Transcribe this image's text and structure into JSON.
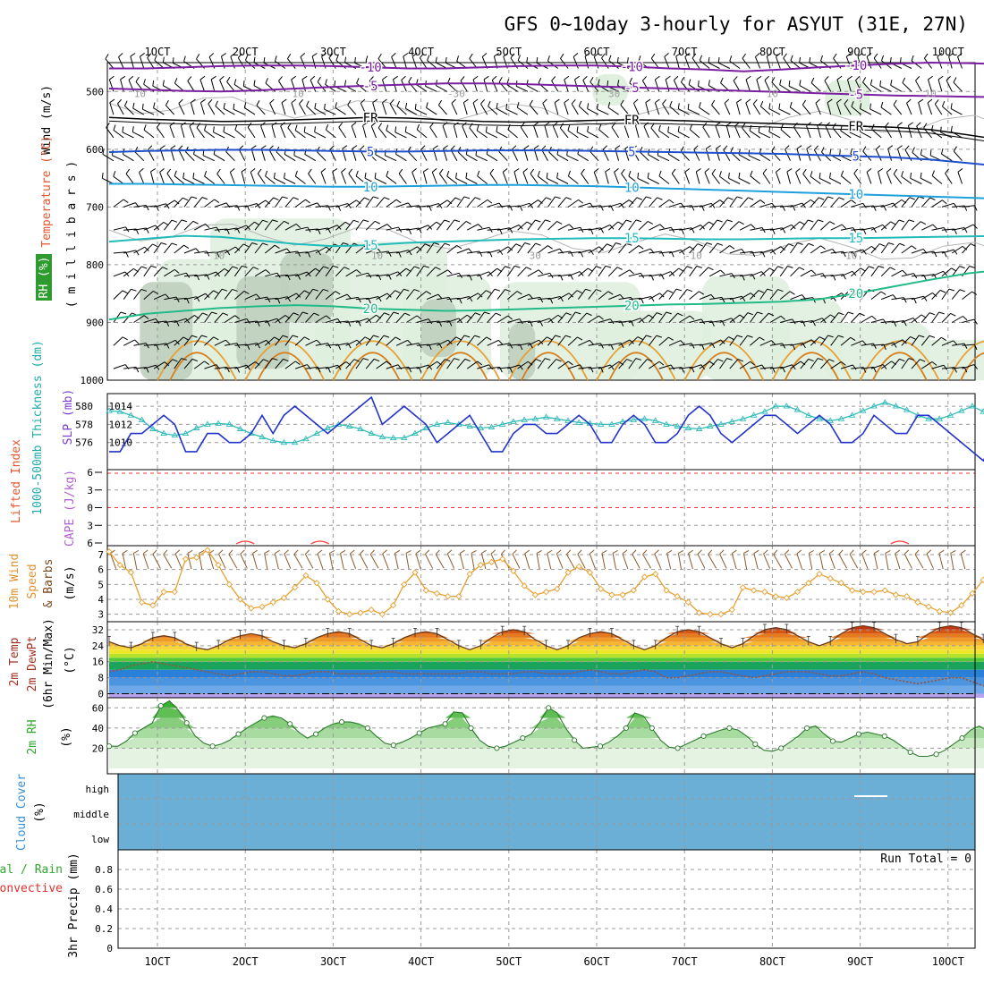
{
  "title": "GFS 0~10day 3-hourly for ASYUT (31E, 27N)",
  "date_labels": [
    "1OCT",
    "2OCT",
    "3OCT",
    "4OCT",
    "5OCT",
    "6OCT",
    "7OCT",
    "8OCT",
    "9OCT",
    "10OCT"
  ],
  "colors": {
    "rh_fill": "#2d9b2d",
    "frame": "#000000",
    "grid": "#9a9a9a",
    "slp": "#2233cc",
    "thick": "#33bbbb",
    "wind10": "#e8a030",
    "barb_upper": "#000000",
    "barb_10m": "#8b5a2b",
    "li_line": "#ff3333",
    "rh2m": "#33aa33",
    "cloud": "#6baed6",
    "dewpt": "#a05030"
  },
  "chart_data": [
    {
      "id": "upper-air",
      "type": "contour",
      "ylabel_wind": "Wind (m/s)",
      "ylabel_temp": "Temperature (°C)",
      "ylabel_rh": "RH (%)",
      "ylabel_unit": "( m i l l i b a r s )",
      "yticks": [
        500,
        600,
        700,
        800,
        900,
        1000
      ],
      "ylim": [
        450,
        1000
      ],
      "isotherms": [
        {
          "label": "-10",
          "color": "#7a1fa2",
          "levels": [
            460,
            460,
            458,
            456,
            455,
            455,
            456,
            458,
            460,
            460,
            458,
            456,
            455,
            455,
            457,
            460,
            462,
            465,
            462,
            458,
            455,
            452,
            450,
            451,
            453
          ]
        },
        {
          "label": "-5",
          "color": "#7a1fa2",
          "levels": [
            495,
            497,
            499,
            500,
            498,
            495,
            492,
            490,
            488,
            486,
            486,
            487,
            489,
            491,
            493,
            495,
            497,
            499,
            501,
            503,
            505,
            507,
            508,
            509,
            510
          ]
        },
        {
          "label": "FR",
          "color": "#000000",
          "levels": [
            545,
            548,
            550,
            552,
            551,
            549,
            547,
            545,
            546,
            549,
            552,
            553,
            552,
            550,
            549,
            550,
            552,
            554,
            556,
            558,
            560,
            562,
            566,
            575,
            585
          ]
        },
        {
          "label": "5",
          "color": "#1f4fcc",
          "levels": [
            605,
            603,
            602,
            601,
            601,
            602,
            603,
            604,
            604,
            603,
            602,
            602,
            602,
            603,
            604,
            605,
            606,
            607,
            608,
            610,
            612,
            614,
            618,
            624,
            630
          ]
        },
        {
          "label": "10",
          "color": "#1ea0dc",
          "levels": [
            660,
            660,
            661,
            662,
            663,
            664,
            665,
            665,
            664,
            663,
            662,
            662,
            663,
            664,
            666,
            668,
            670,
            672,
            674,
            676,
            678,
            680,
            682,
            684,
            686
          ]
        },
        {
          "label": "15",
          "color": "#22bbbb",
          "levels": [
            760,
            755,
            750,
            752,
            758,
            764,
            768,
            766,
            762,
            760,
            758,
            756,
            755,
            754,
            754,
            755,
            756,
            756,
            755,
            754,
            754,
            753,
            752,
            751,
            750
          ]
        },
        {
          "label": "20",
          "color": "#22bb88",
          "levels": [
            895,
            885,
            880,
            875,
            872,
            870,
            872,
            876,
            878,
            880,
            879,
            877,
            875,
            873,
            871,
            869,
            868,
            866,
            864,
            860,
            850,
            838,
            826,
            815,
            808
          ]
        }
      ],
      "barb_levels": [
        460,
        500,
        540,
        580,
        620,
        660,
        700,
        740,
        780,
        820,
        860,
        900,
        940,
        980
      ],
      "barb_labels": [
        "10",
        "10",
        "10",
        "10",
        "-30",
        "30",
        "30",
        "-10",
        "10",
        "10",
        "10"
      ]
    },
    {
      "id": "slp-thickness",
      "type": "line",
      "ylabel_left": "1000-500mb Thickness (dm)",
      "ylabel_right": "SLP (mb)",
      "yticks_left": [
        576,
        578,
        580
      ],
      "yticks_right": [
        1010,
        1012,
        1014
      ],
      "series": [
        {
          "name": "SLP (mb)",
          "values": [
            1009,
            1009,
            1011,
            1011,
            1012,
            1013,
            1012,
            1009,
            1009,
            1011,
            1011,
            1010,
            1010,
            1011,
            1013,
            1011,
            1013,
            1014,
            1013,
            1012,
            1011,
            1012,
            1013,
            1014,
            1015,
            1012,
            1013,
            1014,
            1013,
            1012,
            1010,
            1011,
            1012,
            1013,
            1011,
            1009,
            1009,
            1011,
            1012,
            1012,
            1011,
            1011,
            1012,
            1013,
            1012,
            1010,
            1010,
            1012,
            1013,
            1012,
            1010,
            1010,
            1011,
            1013,
            1014,
            1013,
            1011,
            1010,
            1011,
            1012,
            1013,
            1013,
            1012,
            1011,
            1012,
            1013,
            1012,
            1010,
            1010,
            1011,
            1013,
            1012,
            1011,
            1011,
            1013,
            1013,
            1012,
            1011,
            1010,
            1009,
            1008,
            1010,
            1011
          ]
        },
        {
          "name": "1000-500mb Thickness (dm)",
          "values": [
            579.5,
            579.4,
            579,
            578.5,
            577.5,
            577,
            576.8,
            577,
            577.6,
            578,
            578.1,
            578,
            577.5,
            577,
            576.6,
            576.2,
            576,
            576,
            576.4,
            577,
            577.6,
            578,
            577.8,
            577.5,
            577,
            576.6,
            576.5,
            576.5,
            577,
            577.6,
            578,
            578.2,
            578,
            577.8,
            577.6,
            577.7,
            578,
            578.3,
            578.5,
            578.6,
            578.8,
            578.6,
            578.4,
            578.2,
            578.1,
            578,
            578,
            578.3,
            578.5,
            578.6,
            578.4,
            578,
            577.8,
            577.6,
            577.5,
            577.8,
            578,
            578.3,
            578.6,
            579,
            579.4,
            580,
            580,
            579.6,
            579,
            578.6,
            578.4,
            578.6,
            579,
            579.5,
            580,
            580.4,
            580,
            579.6,
            579,
            578.6,
            578.6,
            579,
            579.5,
            580,
            579.4,
            578.6,
            578
          ]
        }
      ]
    },
    {
      "id": "cape-li",
      "type": "line",
      "ylabel_li": "Lifted Index",
      "ylabel_cape": "CAPE (J/kg)",
      "yticks": [
        -6,
        -3,
        0,
        3,
        6
      ],
      "ylim": [
        6,
        -6
      ],
      "blip_dates": [
        1.0,
        1.85,
        8.45
      ]
    },
    {
      "id": "wind10m",
      "type": "line",
      "ylabel_a": "10m Wind",
      "ylabel_b": "Speed",
      "ylabel_c": "& Barbs",
      "ylabel_unit": "(m/s)",
      "yticks": [
        3,
        4,
        5,
        6,
        7
      ],
      "ylim": [
        2.5,
        7.6
      ],
      "series": [
        {
          "name": "10m Wind Speed",
          "values": [
            7.2,
            6.3,
            5.8,
            3.8,
            3.6,
            4.5,
            4.5,
            6.7,
            6.8,
            7.3,
            6.3,
            5.0,
            4.0,
            3.4,
            3.5,
            3.8,
            4.1,
            4.8,
            5.6,
            5.1,
            4.0,
            3.2,
            3.0,
            3.1,
            3.3,
            3.0,
            3.6,
            5.0,
            5.8,
            4.6,
            4.4,
            4.2,
            4.2,
            5.7,
            6.3,
            6.5,
            6.7,
            5.9,
            4.9,
            4.3,
            4.5,
            4.7,
            5.8,
            6.2,
            5.8,
            4.7,
            4.3,
            4.3,
            4.6,
            5.5,
            5.7,
            4.6,
            4.2,
            3.8,
            3.1,
            3.0,
            3.0,
            3.3,
            4.8,
            4.6,
            4.5,
            4.2,
            4.1,
            4.5,
            5.1,
            5.7,
            5.4,
            5.1,
            4.6,
            4.5,
            4.5,
            4.6,
            4.3,
            4.2,
            3.8,
            3.5,
            3.2,
            3.1,
            3.6,
            4.4,
            5.3,
            4.4,
            3.3
          ]
        }
      ]
    },
    {
      "id": "temp2m",
      "type": "area",
      "ylabel_a": "2m Temp",
      "ylabel_b": "2m DewPt",
      "ylabel_c": "(6hr Min/Max)",
      "ylabel_unit": "(°C)",
      "yticks": [
        0,
        8,
        16,
        24,
        32
      ],
      "ylim": [
        -2,
        36
      ],
      "series": [
        {
          "name": "2m Temp",
          "values": [
            26,
            24,
            23,
            25,
            28,
            29,
            28,
            25,
            23,
            22,
            24,
            27,
            29,
            30,
            29,
            26,
            24,
            23,
            25,
            28,
            30,
            31,
            30,
            27,
            24,
            23,
            25,
            28,
            30,
            31,
            30,
            27,
            24,
            22,
            24,
            28,
            31,
            32,
            31,
            27,
            24,
            22,
            24,
            28,
            30,
            31,
            30,
            27,
            24,
            22,
            24,
            28,
            31,
            32,
            31,
            28,
            25,
            23,
            25,
            29,
            32,
            33,
            32,
            29,
            26,
            24,
            26,
            30,
            33,
            34,
            33,
            30,
            27,
            25,
            26,
            30,
            33,
            34,
            33,
            30,
            27,
            25,
            28
          ]
        },
        {
          "name": "2m DewPt",
          "values": [
            11,
            12,
            14,
            15,
            16,
            15,
            14,
            13,
            12,
            11,
            10,
            9,
            10,
            11,
            11,
            10,
            9,
            9,
            10,
            11,
            11,
            10,
            10,
            10,
            10,
            11,
            11,
            10,
            10,
            10,
            10,
            10,
            10,
            11,
            11,
            10,
            10,
            10,
            11,
            11,
            10,
            10,
            10,
            11,
            12,
            11,
            10,
            10,
            11,
            12,
            11,
            8,
            8,
            9,
            10,
            11,
            11,
            10,
            9,
            8,
            9,
            10,
            11,
            11,
            11,
            10,
            9,
            9,
            10,
            11,
            10,
            8,
            7,
            6,
            5,
            6,
            7,
            8,
            8,
            6,
            4,
            2,
            0
          ]
        }
      ]
    },
    {
      "id": "rh2m",
      "type": "area",
      "ylabel": "2m RH",
      "ylabel_unit": "(%)",
      "yticks": [
        20,
        40,
        60
      ],
      "ylim": [
        0,
        70
      ],
      "series": [
        {
          "name": "2m RH",
          "values": [
            22,
            22,
            27,
            35,
            40,
            45,
            62,
            67,
            58,
            45,
            32,
            25,
            22,
            24,
            28,
            34,
            40,
            45,
            50,
            52,
            50,
            44,
            36,
            30,
            34,
            40,
            44,
            46,
            46,
            44,
            40,
            32,
            25,
            23,
            26,
            30,
            35,
            40,
            42,
            44,
            56,
            55,
            40,
            28,
            22,
            20,
            22,
            26,
            30,
            34,
            46,
            60,
            55,
            40,
            28,
            20,
            21,
            22,
            26,
            32,
            40,
            55,
            52,
            40,
            28,
            21,
            20,
            24,
            28,
            32,
            35,
            38,
            40,
            38,
            32,
            24,
            18,
            17,
            20,
            26,
            32,
            40,
            42,
            34,
            27,
            26,
            30,
            34,
            36,
            34,
            32,
            28,
            22,
            16,
            12,
            12,
            14,
            18,
            24,
            30,
            38,
            42,
            36,
            24,
            20
          ]
        }
      ]
    },
    {
      "id": "cloud",
      "type": "heatmap",
      "ylabel_a": "Cloud Cover",
      "ylabel_unit": "(%)",
      "categories": [
        "high",
        "middle",
        "low"
      ]
    },
    {
      "id": "precip",
      "type": "bar",
      "ylabel_a": "Total / Rain",
      "ylabel_b": "Convective",
      "ylabel_c": "3hr Precip (mm)",
      "yticks": [
        0,
        0.2,
        0.4,
        0.6,
        0.8
      ],
      "ylim": [
        0,
        1.0
      ],
      "run_total": "Run Total = 0",
      "values": []
    }
  ]
}
